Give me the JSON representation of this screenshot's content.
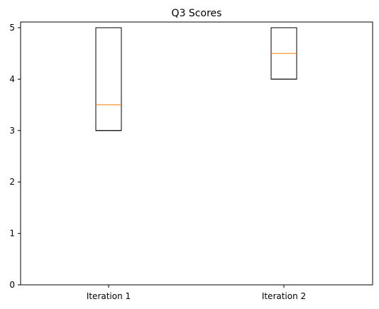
{
  "chart_data": {
    "type": "box",
    "title": "Q3 Scores",
    "xlabel": "",
    "ylabel": "",
    "categories": [
      "Iteration 1",
      "Iteration 2"
    ],
    "boxes": [
      {
        "label": "Iteration 1",
        "whisker_low": 3,
        "q1": 3,
        "median": 3.5,
        "q3": 5,
        "whisker_high": 5
      },
      {
        "label": "Iteration 2",
        "whisker_low": 4,
        "q1": 4,
        "median": 4.5,
        "q3": 5,
        "whisker_high": 5
      }
    ],
    "ylim": [
      0,
      5.1
    ],
    "yticks": [
      "0",
      "1",
      "2",
      "3",
      "4",
      "5"
    ],
    "grid": false,
    "colors": {
      "box": "#000000",
      "median": "#ff7f0e",
      "background": "#ffffff"
    }
  }
}
